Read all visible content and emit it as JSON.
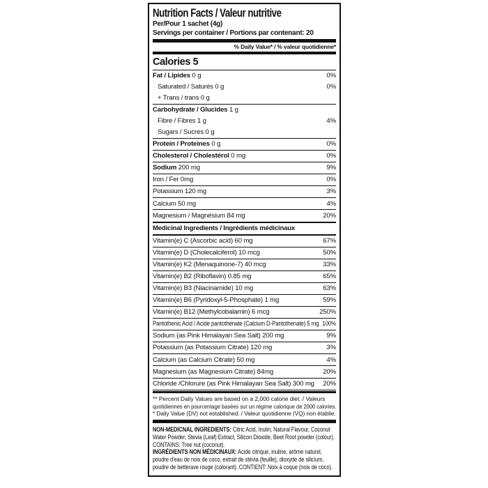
{
  "colors": {
    "text": "#121212",
    "border": "#121212",
    "background": "#ffffff"
  },
  "label": {
    "title": "Nutrition Facts / Valeur nutritive",
    "serving_line1": "Per/Pour 1 sachet (4g)",
    "serving_line2": "Servings per container / Portions par contenant: 20",
    "daily_value_header": "% Daily Value* / % valeur quotidienne*",
    "calories": "Calories 5",
    "main_rows": [
      {
        "label": "Fat / Lipides",
        "amount": "0 g",
        "dv": "0%",
        "bold": true
      },
      {
        "label": "Saturated / Saturés",
        "amount": "0 g",
        "dv": "0%",
        "indent": true
      },
      {
        "label": "+ Trans / trans",
        "amount": "0 g",
        "dv": "",
        "indent": true
      },
      {
        "label": "Carbohydrate / Glucides",
        "amount": "1 g",
        "dv": "",
        "bold": true,
        "sep": "thin"
      },
      {
        "label": "Fibre / Fibres",
        "amount": "1 g",
        "dv": "4%",
        "indent": true
      },
      {
        "label": "Sugars / Sucres",
        "amount": "0 g",
        "dv": "",
        "indent": true
      },
      {
        "label": "Protein / Proteines",
        "amount": "0 g",
        "dv": "0%",
        "bold": true,
        "sep": "thin"
      },
      {
        "label": "Cholesterol / Cholestérol",
        "amount": "0 mg",
        "dv": "0%",
        "bold": true,
        "sep": "thin"
      },
      {
        "label": "Sodium",
        "amount": "200 mg",
        "dv": "9%",
        "bold": true,
        "sep": "thin"
      },
      {
        "label": "Iron / Fer",
        "amount": "0mg",
        "dv": "0%",
        "sep": "thin"
      },
      {
        "label": "Potassium",
        "amount": "120 mg",
        "dv": "3%",
        "sep": "thin"
      },
      {
        "label": "Calcium",
        "amount": "50 mg",
        "dv": "4%",
        "sep": "thin"
      },
      {
        "label": "Magnesium / Magnésium",
        "amount": "84 mg",
        "dv": "20%",
        "sep": "thin"
      }
    ],
    "medicinal_header": "Medicinal Ingredients / Ingrédients médicinaux",
    "medicinal_rows": [
      {
        "label": "Vitamin(e) C (Ascorbic acid) 60 mg",
        "dv": "67%"
      },
      {
        "label": "Vitamin(e) D (Cholecalciferol) 10 mcg",
        "dv": "50%",
        "sep": "thin"
      },
      {
        "label": "Vitamin(e) K2 (Menaquinone-7) 40 mcg",
        "dv": "33%",
        "sep": "thin"
      },
      {
        "label": "Vitamin(e) B2 (Riboflavin) 0.85 mg",
        "dv": "65%",
        "sep": "thin"
      },
      {
        "label": "Vitamin(e) B3 (Niacinamide) 10 mg",
        "dv": "63%",
        "sep": "thin"
      },
      {
        "label": "Vitamin(e) B6 (Pyridoxyl-5-Phosphate) 1 mg",
        "dv": "59%",
        "sep": "thin"
      },
      {
        "label": "Vitamin(e) B12 (Methylcobalamin) 6 mcg",
        "dv": "250%",
        "sep": "thin"
      },
      {
        "label": "Pantothenic Acid / Acide pantothénate (Calcium D-Pantothenate) 5 mg",
        "dv": "100%",
        "sep": "med"
      },
      {
        "label": "Sodium (as Pink Himalayan Sea Salt) 200 mg",
        "dv": "9%",
        "sep": "thin"
      },
      {
        "label": "Potassium (as Potassium Citrate) 120 mg",
        "dv": "3%",
        "sep": "thin"
      },
      {
        "label": "Calcium (as Calcium Citrate) 50 mg",
        "dv": "4%",
        "sep": "thin"
      },
      {
        "label": "Magnesium (as Magnesium Citrate) 84mg",
        "dv": "20%",
        "sep": "thin"
      },
      {
        "label": "Chloride /Chlorure (as Pink Himalayan Sea Salt) 300 mg",
        "dv": "20%",
        "sep": "thin"
      }
    ],
    "footnote_lines": [
      "** Percent Daily Values are based on a 2,000 calorie diet. / Valeurs",
      "quotidiennes en pourcentage basées sur un régime calorique de 2000 calories.",
      "* Daily Value (DV) not established. / Valeur quotidienne (VQ) non établie."
    ],
    "non_medicinal": {
      "en_title": "NON-MEDICNAL INGREDIENTS:",
      "en_text": "Citric Acid, Inulin, Natural Flavour, Coconut Water Powder, Stevia (Leaf) Extract, Silicon Dioxide, Beet Root powder (colour). CONTAINS: Tree nut (coconut).",
      "fr_title": "INGRÉDIENTS NON MÉDICINAUX:",
      "fr_text": "Acide citrique, inuline, arôme naturel, poudre d'eau de noix de coco, extrait de stévia (feuille), dioxyde de silicium, poudre de betterave rouge (colorant). CONTIENT: Noix à coque (noix de coco)."
    }
  }
}
